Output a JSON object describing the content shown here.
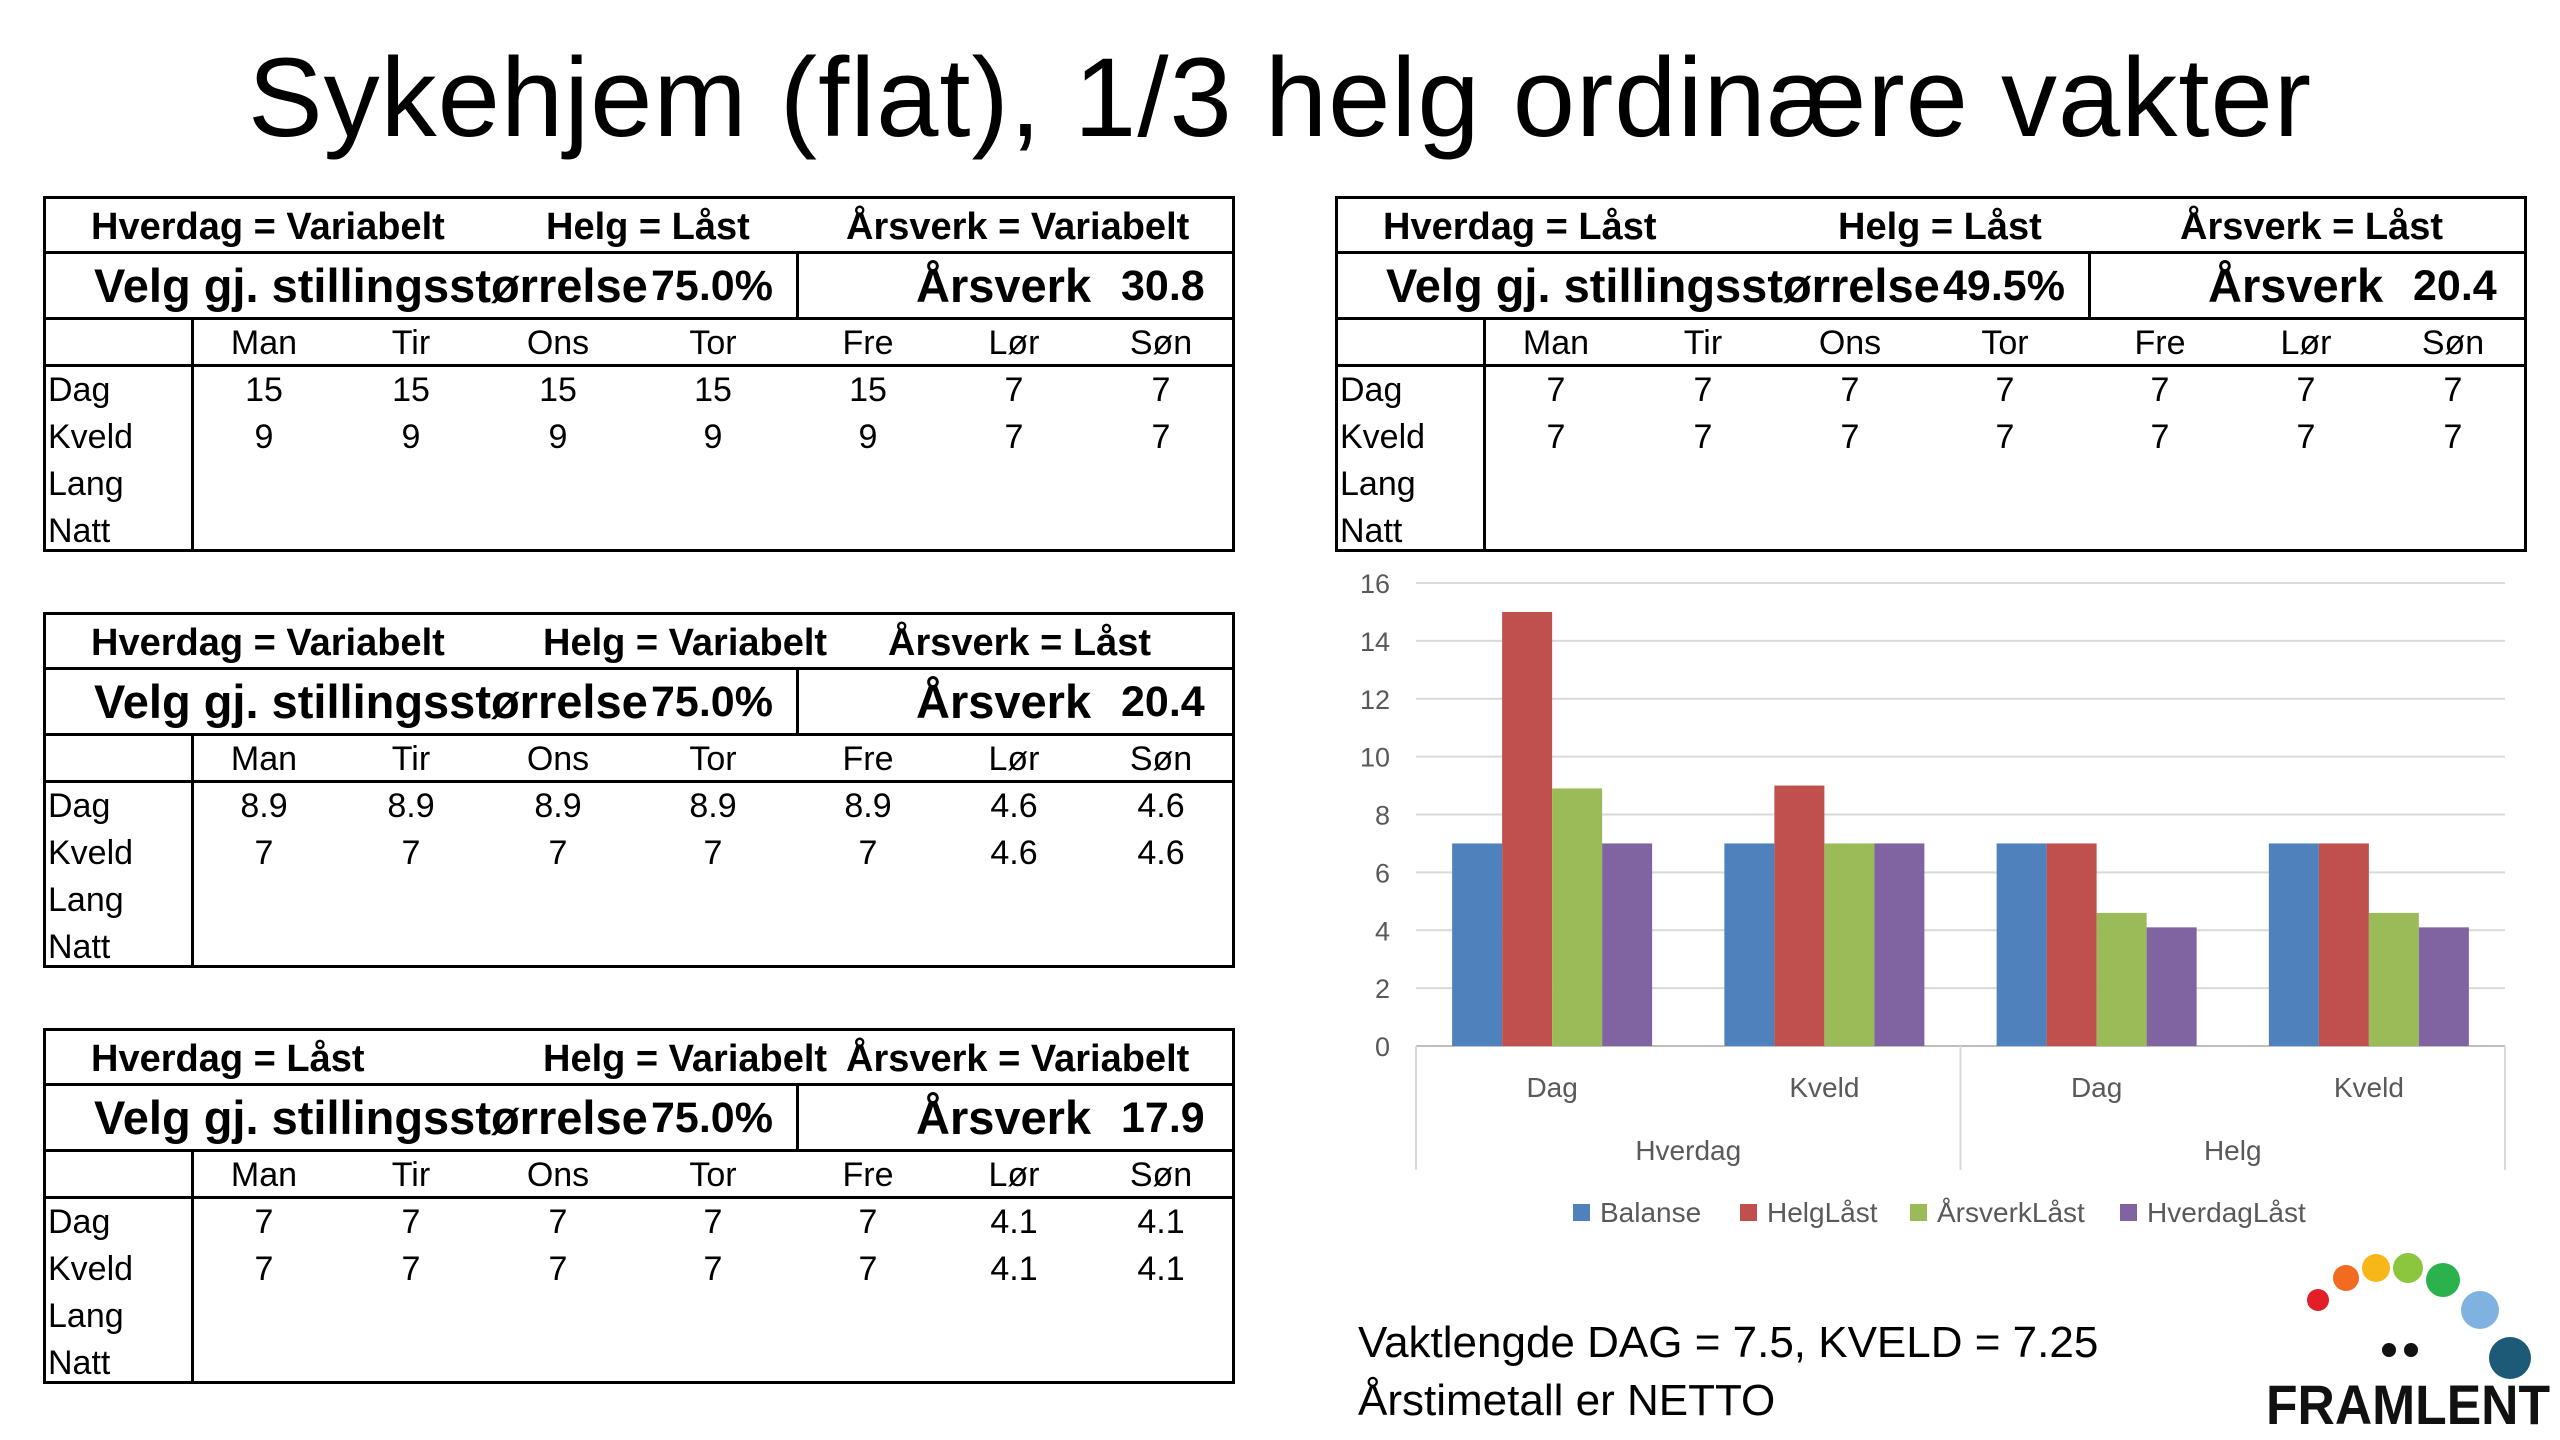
{
  "title": "Sykehjem (flat), 1/3 helg ordinære vakter",
  "row_labels": [
    "Dag",
    "Kveld",
    "Lang",
    "Natt"
  ],
  "days": [
    "Man",
    "Tir",
    "Ons",
    "Tor",
    "Fre",
    "Lør",
    "Søn"
  ],
  "tables": [
    {
      "hverdag": "Hverdag = Variabelt",
      "helg": "Helg = Låst",
      "arsverk_header": "Årsverk = Variabelt",
      "velg_label": "Velg gj. stillingsstørrelse",
      "velg_value": "75.0%",
      "arsverk_label": "Årsverk",
      "arsverk_value": "30.8",
      "rows": [
        [
          "15",
          "15",
          "15",
          "15",
          "15",
          "7",
          "7"
        ],
        [
          "9",
          "9",
          "9",
          "9",
          "9",
          "7",
          "7"
        ]
      ]
    },
    {
      "hverdag": "Hverdag = Variabelt",
      "helg": "Helg = Variabelt",
      "arsverk_header": "Årsverk = Låst",
      "velg_label": "Velg gj. stillingsstørrelse",
      "velg_value": "75.0%",
      "arsverk_label": "Årsverk",
      "arsverk_value": "20.4",
      "rows": [
        [
          "8.9",
          "8.9",
          "8.9",
          "8.9",
          "8.9",
          "4.6",
          "4.6"
        ],
        [
          "7",
          "7",
          "7",
          "7",
          "7",
          "4.6",
          "4.6"
        ]
      ]
    },
    {
      "hverdag": "Hverdag = Låst",
      "helg": "Helg = Variabelt",
      "arsverk_header": "Årsverk = Variabelt",
      "velg_label": "Velg gj. stillingsstørrelse",
      "velg_value": "75.0%",
      "arsverk_label": "Årsverk",
      "arsverk_value": "17.9",
      "rows": [
        [
          "7",
          "7",
          "7",
          "7",
          "7",
          "4.1",
          "4.1"
        ],
        [
          "7",
          "7",
          "7",
          "7",
          "7",
          "4.1",
          "4.1"
        ]
      ]
    },
    {
      "hverdag": "Hverdag = Låst",
      "helg": "Helg = Låst",
      "arsverk_header": "Årsverk = Låst",
      "velg_label": "Velg gj. stillingsstørrelse",
      "velg_value": "49.5%",
      "arsverk_label": "Årsverk",
      "arsverk_value": "20.4",
      "rows": [
        [
          "7",
          "7",
          "7",
          "7",
          "7",
          "7",
          "7"
        ],
        [
          "7",
          "7",
          "7",
          "7",
          "7",
          "7",
          "7"
        ]
      ]
    }
  ],
  "chart_data": {
    "type": "bar",
    "categories": [
      "Dag",
      "Kveld",
      "Dag",
      "Kveld"
    ],
    "groups": [
      "Hverdag",
      "Helg"
    ],
    "ylim": [
      0,
      16
    ],
    "yticks": [
      0,
      2,
      4,
      6,
      8,
      10,
      12,
      14,
      16
    ],
    "grid": true,
    "legend": "bottom",
    "series": [
      {
        "name": "Balanse",
        "color": "#4F81BD",
        "values": [
          7,
          7,
          7,
          7
        ]
      },
      {
        "name": "HelgLåst",
        "color": "#C0504D",
        "values": [
          15,
          9,
          7,
          7
        ]
      },
      {
        "name": "ÅrsverkLåst",
        "color": "#9BBB59",
        "values": [
          8.9,
          7,
          4.6,
          4.6
        ]
      },
      {
        "name": "HverdagLåst",
        "color": "#8064A2",
        "values": [
          7,
          7,
          4.1,
          4.1
        ]
      }
    ]
  },
  "footer": {
    "line1": "Vaktlengde DAG = 7.5, KVELD = 7.25",
    "line2": "Årstimetall er NETTO"
  },
  "logo": {
    "text": "FRAMLENT",
    "dot_colors": [
      "#E41E26",
      "#F26B21",
      "#F7B718",
      "#8CC63F",
      "#2BB24C",
      "#7FB2E0",
      "#1D5A78"
    ]
  }
}
